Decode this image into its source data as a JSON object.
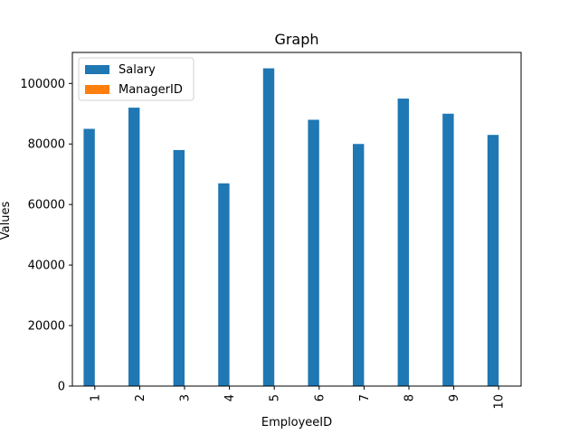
{
  "chart_data": {
    "type": "bar",
    "title": "Graph",
    "xlabel": "EmployeeID",
    "ylabel": "Values",
    "categories": [
      "1",
      "2",
      "3",
      "4",
      "5",
      "6",
      "7",
      "8",
      "9",
      "10"
    ],
    "series": [
      {
        "name": "Salary",
        "color": "#1f77b4",
        "values": [
          85000,
          92000,
          78000,
          67000,
          105000,
          88000,
          80000,
          95000,
          90000,
          83000
        ]
      },
      {
        "name": "ManagerID",
        "color": "#ff7f0e",
        "values": [
          0,
          0,
          0,
          0,
          0,
          0,
          0,
          0,
          0,
          0
        ]
      }
    ],
    "ylim": [
      0,
      110250
    ],
    "yticks": [
      0,
      20000,
      40000,
      60000,
      80000,
      100000
    ],
    "grid": false,
    "legend_position": "top-left"
  }
}
